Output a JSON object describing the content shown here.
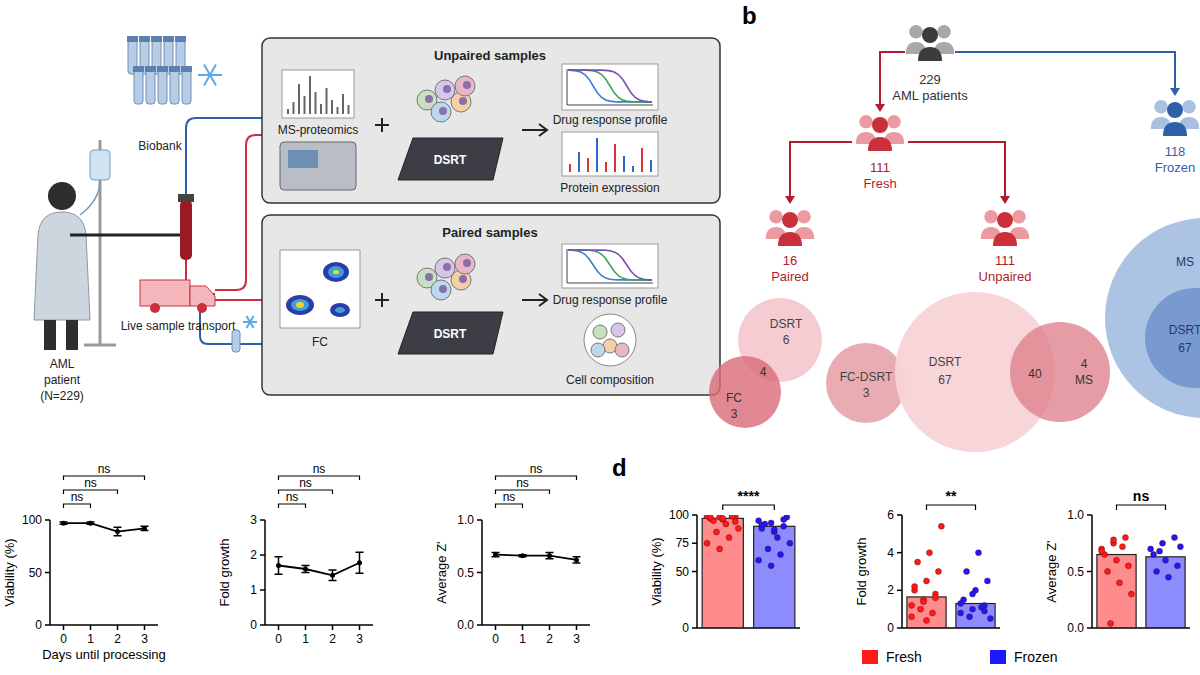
{
  "diagram": {
    "panel_b": "b",
    "panel_d": "d",
    "patient": [
      "AML",
      "patient",
      "(N=229)"
    ],
    "biobank": "Biobank",
    "transport": "Live sample transport",
    "unpaired": {
      "title": "Unpaired samples",
      "method": "MS-proteomics",
      "assay": "DSRT",
      "output_1": "Drug response profile",
      "output_2": "Protein expression"
    },
    "paired": {
      "title": "Paired samples",
      "method": "FC",
      "assay": "DSRT",
      "output_1": "Drug response profile",
      "output_2": "Cell composition"
    },
    "total": {
      "count": 229,
      "label": "AML patients"
    },
    "fresh": {
      "count": 111,
      "label": "Fresh"
    },
    "frozen": {
      "count": 118,
      "label": "Frozen"
    },
    "paired_group": {
      "count": 16,
      "label": "Paired"
    },
    "unpaired_group": {
      "count": 111,
      "label": "Unpaired"
    },
    "venn_paired": {
      "dsrt_label": "DSRT",
      "dsrt": 6,
      "overlap": 4,
      "fc_label": "FC",
      "fc": 3,
      "fc_dsrt_label": "FC-DSRT",
      "fc_dsrt": 3
    },
    "venn_unpaired": {
      "dsrt_label": "DSRT",
      "dsrt": 67,
      "overlap": 40,
      "ms_label": "MS",
      "ms": 4
    },
    "venn_frozen": {
      "ms_label": "MS",
      "dsrt_label": "DSRT",
      "dsrt": 67
    }
  },
  "legend_items": [
    {
      "label": "Fresh",
      "color": "#ff1a1a"
    },
    {
      "label": "Frozen",
      "color": "#1a1aff"
    }
  ],
  "chart_data": [
    {
      "type": "line",
      "y_label": "Viability (%)",
      "x_label": "Days until processing",
      "x": [
        0,
        1,
        2,
        3
      ],
      "xlim": [
        -0.5,
        3.5
      ],
      "xticks": [
        0,
        1,
        2,
        3
      ],
      "ylim": [
        0,
        100
      ],
      "yticks": [
        0,
        50,
        100
      ],
      "series": [
        {
          "color": "#000000",
          "values": [
            97,
            97,
            89,
            92
          ],
          "errors": [
            1,
            1,
            4,
            2
          ]
        }
      ],
      "comparisons": [
        {
          "from": 0,
          "to": 1,
          "label": "ns"
        },
        {
          "from": 0,
          "to": 2,
          "label": "ns"
        },
        {
          "from": 0,
          "to": 3,
          "label": "ns"
        }
      ]
    },
    {
      "type": "line",
      "y_label": "Fold growth",
      "x": [
        0,
        1,
        2,
        3
      ],
      "xlim": [
        -0.5,
        3.5
      ],
      "xticks": [
        0,
        1,
        2,
        3
      ],
      "ylim": [
        0,
        3
      ],
      "yticks": [
        0,
        1,
        2,
        3
      ],
      "series": [
        {
          "color": "#000000",
          "values": [
            1.7,
            1.6,
            1.42,
            1.78
          ],
          "errors": [
            0.25,
            0.1,
            0.15,
            0.3
          ]
        }
      ],
      "comparisons": [
        {
          "from": 0,
          "to": 1,
          "label": "ns"
        },
        {
          "from": 0,
          "to": 2,
          "label": "ns"
        },
        {
          "from": 0,
          "to": 3,
          "label": "ns"
        }
      ]
    },
    {
      "type": "line",
      "y_label": "Average Z'",
      "x": [
        0,
        1,
        2,
        3
      ],
      "xlim": [
        -0.5,
        3.5
      ],
      "xticks": [
        0,
        1,
        2,
        3
      ],
      "ylim": [
        0,
        1
      ],
      "yticks": [
        {
          "value": 0,
          "label": "0.0"
        },
        0.5,
        {
          "value": 1,
          "label": "1.0"
        }
      ],
      "series": [
        {
          "color": "#000000",
          "values": [
            0.67,
            0.66,
            0.66,
            0.62
          ],
          "errors": [
            0.02,
            0.01,
            0.03,
            0.03
          ]
        }
      ],
      "comparisons": [
        {
          "from": 0,
          "to": 1,
          "label": "ns"
        },
        {
          "from": 0,
          "to": 2,
          "label": "ns"
        },
        {
          "from": 0,
          "to": 3,
          "label": "ns"
        }
      ]
    },
    {
      "type": "bar",
      "y_label": "Viability (%)",
      "categories": [
        null,
        null
      ],
      "values": [
        97,
        90
      ],
      "colors": [
        "#ff1a1a",
        "#1a1aff"
      ],
      "points": [
        [
          99,
          98,
          99,
          97,
          96,
          99,
          95,
          92,
          88,
          85,
          80,
          75,
          70,
          99,
          98,
          97,
          94
        ],
        [
          95,
          93,
          90,
          88,
          85,
          98,
          92,
          80,
          75,
          70,
          65,
          60,
          55,
          96,
          91,
          87
        ]
      ],
      "ylim": [
        0,
        100
      ],
      "yticks": [
        0,
        50,
        75,
        100
      ],
      "comparisons": [
        {
          "from": 0,
          "to": 1,
          "label": "****"
        }
      ]
    },
    {
      "type": "bar",
      "y_label": "Fold growth",
      "categories": [
        null,
        null
      ],
      "values": [
        1.65,
        1.3
      ],
      "colors": [
        "#ff1a1a",
        "#1a1aff"
      ],
      "points": [
        [
          1.2,
          1.5,
          1.8,
          2.0,
          2.5,
          3.0,
          3.5,
          4.0,
          5.4,
          1.0,
          0.8,
          0.6,
          1.4,
          1.6,
          2.2,
          0.4
        ],
        [
          0.8,
          1.0,
          1.2,
          1.5,
          2.0,
          2.5,
          3.0,
          4.0,
          0.5,
          0.6,
          1.1,
          1.3,
          1.8,
          0.9
        ]
      ],
      "ylim": [
        0,
        6
      ],
      "yticks": [
        0,
        2,
        4,
        6
      ],
      "comparisons": [
        {
          "from": 0,
          "to": 1,
          "label": "**"
        }
      ]
    },
    {
      "type": "bar",
      "y_label": "Average Z'",
      "categories": [
        null,
        null
      ],
      "values": [
        0.65,
        0.63
      ],
      "colors": [
        "#ff1a1a",
        "#1a1aff"
      ],
      "points": [
        [
          0.7,
          0.75,
          0.8,
          0.65,
          0.6,
          0.55,
          0.5,
          0.4,
          0.3,
          0.04,
          0.72,
          0.68,
          0.78
        ],
        [
          0.7,
          0.75,
          0.8,
          0.65,
          0.6,
          0.55,
          0.5,
          0.45,
          0.72,
          0.68
        ]
      ],
      "ylim": [
        0,
        1
      ],
      "yticks": [
        {
          "value": 0,
          "label": "0.0"
        },
        0.5,
        {
          "value": 1,
          "label": "1.0"
        }
      ],
      "comparisons": [
        {
          "from": 0,
          "to": 1,
          "label": "ns"
        }
      ]
    }
  ]
}
